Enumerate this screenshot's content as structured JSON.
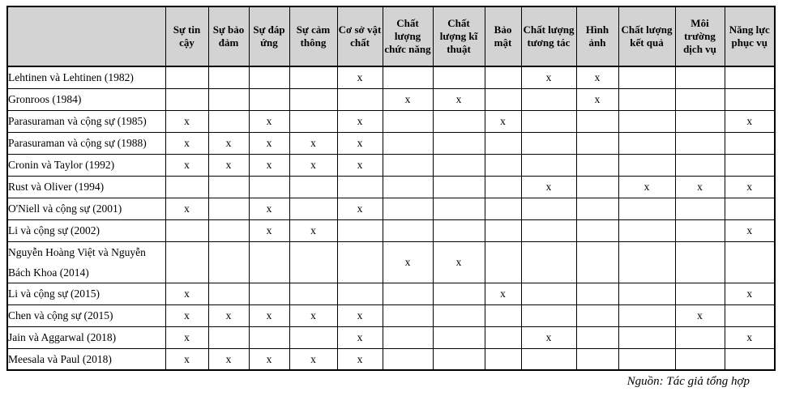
{
  "table": {
    "mark_symbol": "x",
    "columns": [
      "Sự tin cậy",
      "Sự bảo đảm",
      "Sự đáp ứng",
      "Sự cảm thông",
      "Cơ sở vật chất",
      "Chất lượng chức năng",
      "Chất lượng kĩ thuật",
      "Bảo mật",
      "Chất lượng tương tác",
      "Hình ảnh",
      "Chất lượng kết quả",
      "Môi trường dịch vụ",
      "Năng lực phục vụ"
    ],
    "rows": [
      {
        "author": "Lehtinen và Lehtinen (1982)",
        "marks": [
          "",
          "",
          "",
          "",
          "x",
          "",
          "",
          "",
          "x",
          "x",
          "",
          "",
          ""
        ]
      },
      {
        "author": "Gronroos (1984)",
        "marks": [
          "",
          "",
          "",
          "",
          "",
          "x",
          "x",
          "",
          "",
          "x",
          "",
          "",
          ""
        ]
      },
      {
        "author": "Parasuraman và cộng sự (1985)",
        "marks": [
          "x",
          "",
          "x",
          "",
          "x",
          "",
          "",
          "x",
          "",
          "",
          "",
          "",
          "x"
        ]
      },
      {
        "author": "Parasuraman và cộng sự (1988)",
        "marks": [
          "x",
          "x",
          "x",
          "x",
          "x",
          "",
          "",
          "",
          "",
          "",
          "",
          "",
          ""
        ]
      },
      {
        "author": "Cronin và Taylor (1992)",
        "marks": [
          "x",
          "x",
          "x",
          "x",
          "x",
          "",
          "",
          "",
          "",
          "",
          "",
          "",
          ""
        ]
      },
      {
        "author": "Rust và Oliver (1994)",
        "marks": [
          "",
          "",
          "",
          "",
          "",
          "",
          "",
          "",
          "x",
          "",
          "x",
          "x",
          "x"
        ]
      },
      {
        "author": "O'Niell và cộng sự (2001)",
        "marks": [
          "x",
          "",
          "x",
          "",
          "x",
          "",
          "",
          "",
          "",
          "",
          "",
          "",
          ""
        ]
      },
      {
        "author": "Li và cộng sự (2002)",
        "marks": [
          "",
          "",
          "x",
          "x",
          "",
          "",
          "",
          "",
          "",
          "",
          "",
          "",
          "x"
        ]
      },
      {
        "author": "Nguyễn Hoàng Việt và Nguyễn Bách Khoa (2014)",
        "marks": [
          "",
          "",
          "",
          "",
          "",
          "x",
          "x",
          "",
          "",
          "",
          "",
          "",
          ""
        ]
      },
      {
        "author": "Li và cộng sự (2015)",
        "marks": [
          "x",
          "",
          "",
          "",
          "",
          "",
          "",
          "x",
          "",
          "",
          "",
          "",
          "x"
        ]
      },
      {
        "author": "Chen và cộng sự (2015)",
        "marks": [
          "x",
          "x",
          "x",
          "x",
          "x",
          "",
          "",
          "",
          "",
          "",
          "",
          "x",
          ""
        ]
      },
      {
        "author": "Jain và Aggarwal (2018)",
        "marks": [
          "x",
          "",
          "",
          "",
          "x",
          "",
          "",
          "",
          "x",
          "",
          "",
          "",
          "x"
        ]
      },
      {
        "author": "Meesala và Paul (2018)",
        "marks": [
          "x",
          "x",
          "x",
          "x",
          "x",
          "",
          "",
          "",
          "",
          "",
          "",
          "",
          ""
        ]
      }
    ]
  },
  "caption": "Nguồn: Tác giả tổng hợp",
  "colors": {
    "header_bg": "#d3d3d3",
    "border": "#000000",
    "text": "#000000"
  }
}
